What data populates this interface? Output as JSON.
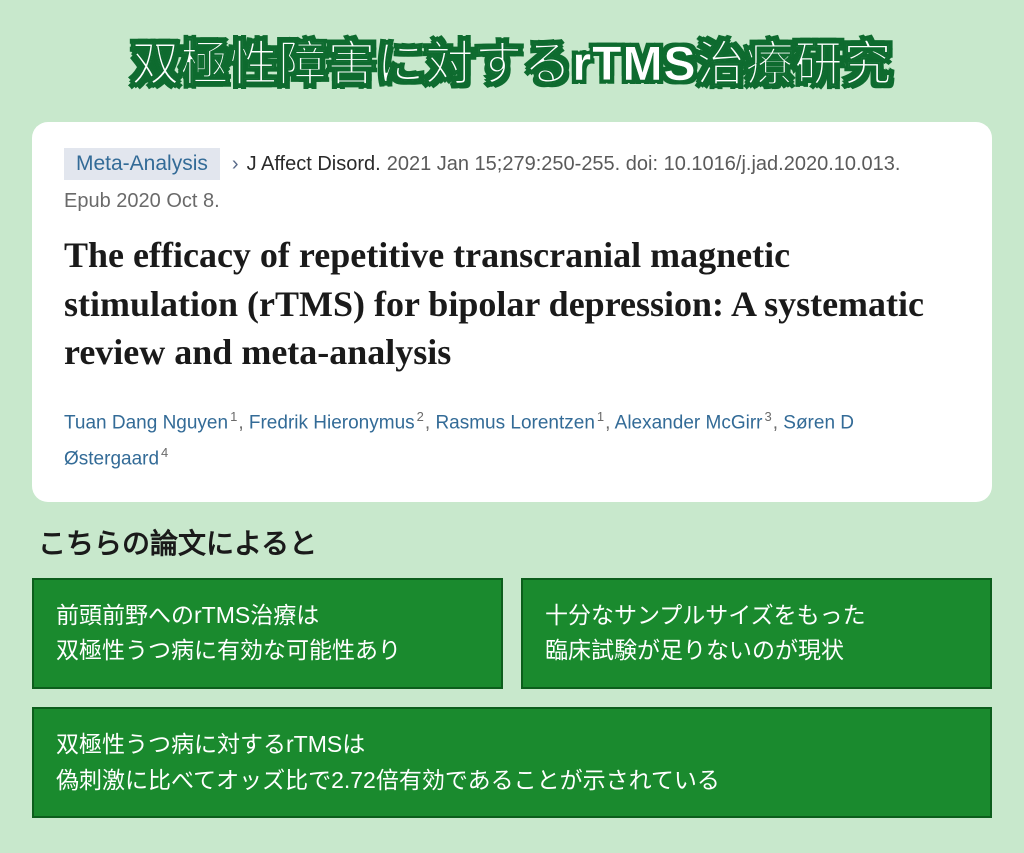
{
  "colors": {
    "background": "#c8e8cc",
    "title_fill": "#ffffff",
    "title_stroke": "#0e6b2f",
    "card_background": "#ffffff",
    "tag_background": "#e2e6ee",
    "tag_text": "#336b97",
    "link_text": "#336b97",
    "body_text": "#1a1a1a",
    "muted_text": "#6a6a6a",
    "box_background": "#1a8a2e",
    "box_border": "#0c5e1c",
    "box_text": "#ffffff"
  },
  "main_title": "双極性障害に対するrTMS治療研究",
  "paper": {
    "tag": "Meta-Analysis",
    "journal": "J Affect Disord.",
    "citation": "2021 Jan 15;279:250-255. doi: 10.1016/j.jad.2020.10.013.",
    "epub": "Epub 2020 Oct 8.",
    "title": "The efficacy of repetitive transcranial magnetic stimulation (rTMS) for bipolar depression: A systematic review and meta-analysis",
    "authors": [
      {
        "name": "Tuan Dang Nguyen",
        "aff": "1"
      },
      {
        "name": "Fredrik Hieronymus",
        "aff": "2"
      },
      {
        "name": "Rasmus Lorentzen",
        "aff": "1"
      },
      {
        "name": "Alexander McGirr",
        "aff": "3"
      },
      {
        "name": "Søren D Østergaard",
        "aff": "4"
      }
    ]
  },
  "subheading": "こちらの論文によると",
  "findings": {
    "box1_line1": "前頭前野へのrTMS治療は",
    "box1_line2": "双極性うつ病に有効な可能性あり",
    "box2_line1": "十分なサンプルサイズをもった",
    "box2_line2": "臨床試験が足りないのが現状",
    "box3_line1": "双極性うつ病に対するrTMSは",
    "box3_line2": "偽刺激に比べてオッズ比で2.72倍有効であることが示されている"
  }
}
